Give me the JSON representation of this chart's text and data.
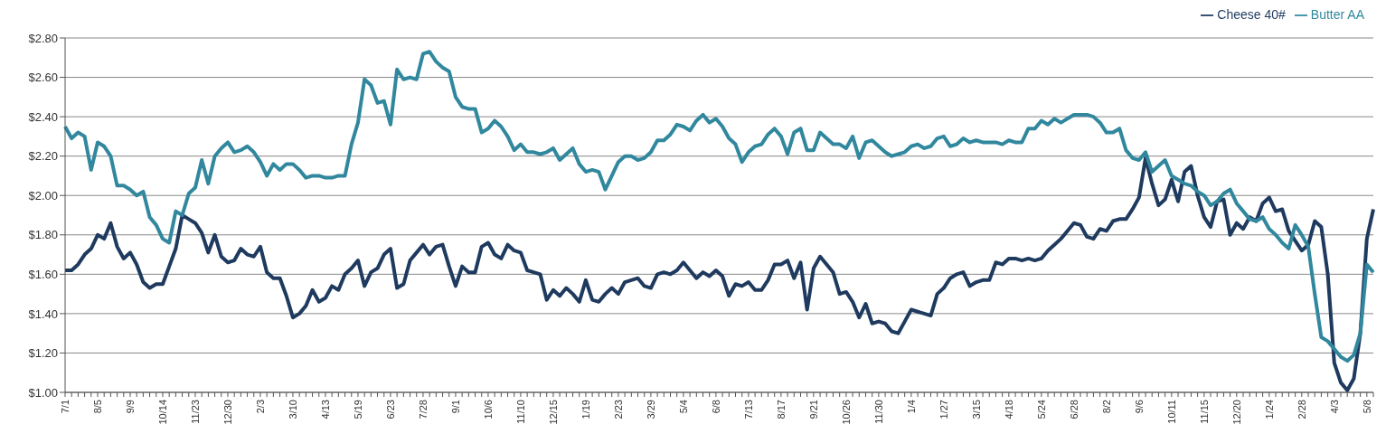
{
  "chart_data": {
    "type": "line",
    "categories": [
      "7/1",
      null,
      null,
      null,
      null,
      "8/5",
      null,
      null,
      null,
      null,
      "9/9",
      null,
      null,
      null,
      null,
      "10/14",
      null,
      null,
      null,
      null,
      "11/23",
      null,
      null,
      null,
      null,
      "12/30",
      null,
      null,
      null,
      null,
      "2/3",
      null,
      null,
      null,
      null,
      "3/10",
      null,
      null,
      null,
      null,
      "4/13",
      null,
      null,
      null,
      null,
      "5/19",
      null,
      null,
      null,
      null,
      "6/23",
      null,
      null,
      null,
      null,
      "7/28",
      null,
      null,
      null,
      null,
      "9/1",
      null,
      null,
      null,
      null,
      "10/6",
      null,
      null,
      null,
      null,
      "11/10",
      null,
      null,
      null,
      null,
      "12/15",
      null,
      null,
      null,
      null,
      "1/19",
      null,
      null,
      null,
      null,
      "2/23",
      null,
      null,
      null,
      null,
      "3/29",
      null,
      null,
      null,
      null,
      "5/4",
      null,
      null,
      null,
      null,
      "6/8",
      null,
      null,
      null,
      null,
      "7/13",
      null,
      null,
      null,
      null,
      "8/17",
      null,
      null,
      null,
      null,
      "9/21",
      null,
      null,
      null,
      null,
      "10/26",
      null,
      null,
      null,
      null,
      "11/30",
      null,
      null,
      null,
      null,
      "1/4",
      null,
      null,
      null,
      null,
      "1/27",
      null,
      null,
      null,
      null,
      "3/15",
      null,
      null,
      null,
      null,
      "4/18",
      null,
      null,
      null,
      null,
      "5/24",
      null,
      null,
      null,
      null,
      "6/28",
      null,
      null,
      null,
      null,
      "8/2",
      null,
      null,
      null,
      null,
      "9/6",
      null,
      null,
      null,
      null,
      "10/11",
      null,
      null,
      null,
      null,
      "11/15",
      null,
      null,
      null,
      null,
      "12/20",
      null,
      null,
      null,
      null,
      "1/24",
      null,
      null,
      null,
      null,
      "2/28",
      null,
      null,
      null,
      null,
      "4/3",
      null,
      null,
      null,
      null,
      "5/8",
      null
    ],
    "series": [
      {
        "name": "Cheese 40#",
        "color": "#1f3a5f",
        "values": [
          1.62,
          1.62,
          1.65,
          1.7,
          1.73,
          1.8,
          1.78,
          1.86,
          1.74,
          1.68,
          1.71,
          1.65,
          1.56,
          1.53,
          1.55,
          1.55,
          1.64,
          1.73,
          1.9,
          1.88,
          1.86,
          1.81,
          1.71,
          1.8,
          1.69,
          1.66,
          1.67,
          1.73,
          1.7,
          1.69,
          1.74,
          1.61,
          1.58,
          1.58,
          1.49,
          1.38,
          1.4,
          1.44,
          1.52,
          1.46,
          1.48,
          1.54,
          1.52,
          1.6,
          1.63,
          1.67,
          1.54,
          1.61,
          1.63,
          1.7,
          1.73,
          1.53,
          1.55,
          1.67,
          1.71,
          1.75,
          1.7,
          1.74,
          1.75,
          1.64,
          1.54,
          1.64,
          1.61,
          1.61,
          1.74,
          1.76,
          1.7,
          1.68,
          1.75,
          1.72,
          1.71,
          1.62,
          1.61,
          1.6,
          1.47,
          1.52,
          1.49,
          1.53,
          1.5,
          1.46,
          1.57,
          1.47,
          1.46,
          1.5,
          1.53,
          1.5,
          1.56,
          1.57,
          1.58,
          1.54,
          1.53,
          1.6,
          1.61,
          1.6,
          1.62,
          1.66,
          1.62,
          1.58,
          1.61,
          1.59,
          1.62,
          1.59,
          1.49,
          1.55,
          1.54,
          1.56,
          1.52,
          1.52,
          1.57,
          1.65,
          1.65,
          1.67,
          1.58,
          1.66,
          1.42,
          1.63,
          1.69,
          1.65,
          1.61,
          1.5,
          1.51,
          1.46,
          1.38,
          1.45,
          1.35,
          1.36,
          1.35,
          1.31,
          1.3,
          1.36,
          1.42,
          1.41,
          1.4,
          1.39,
          1.5,
          1.53,
          1.58,
          1.6,
          1.61,
          1.54,
          1.56,
          1.57,
          1.57,
          1.66,
          1.65,
          1.68,
          1.68,
          1.67,
          1.68,
          1.67,
          1.68,
          1.72,
          1.75,
          1.78,
          1.82,
          1.86,
          1.85,
          1.79,
          1.78,
          1.83,
          1.82,
          1.87,
          1.88,
          1.88,
          1.93,
          1.99,
          2.19,
          2.06,
          1.95,
          1.98,
          2.08,
          1.97,
          2.12,
          2.15,
          2.0,
          1.89,
          1.84,
          1.97,
          1.98,
          1.8,
          1.86,
          1.83,
          1.89,
          1.87,
          1.96,
          1.99,
          1.92,
          1.93,
          1.82,
          1.77,
          1.72,
          1.75,
          1.87,
          1.84,
          1.6,
          1.15,
          1.05,
          1.01,
          1.07,
          1.3,
          1.78,
          1.93
        ]
      },
      {
        "name": "Butter AA",
        "color": "#31889e",
        "values": [
          2.35,
          2.29,
          2.32,
          2.3,
          2.13,
          2.27,
          2.25,
          2.2,
          2.05,
          2.05,
          2.03,
          2.0,
          2.02,
          1.89,
          1.85,
          1.78,
          1.76,
          1.92,
          1.9,
          2.01,
          2.04,
          2.18,
          2.06,
          2.2,
          2.24,
          2.27,
          2.22,
          2.23,
          2.25,
          2.22,
          2.17,
          2.1,
          2.16,
          2.13,
          2.16,
          2.16,
          2.13,
          2.09,
          2.1,
          2.1,
          2.09,
          2.09,
          2.1,
          2.1,
          2.26,
          2.37,
          2.59,
          2.56,
          2.47,
          2.48,
          2.36,
          2.64,
          2.59,
          2.6,
          2.59,
          2.72,
          2.73,
          2.68,
          2.65,
          2.63,
          2.5,
          2.45,
          2.44,
          2.44,
          2.32,
          2.34,
          2.38,
          2.35,
          2.3,
          2.23,
          2.26,
          2.22,
          2.22,
          2.21,
          2.22,
          2.24,
          2.18,
          2.21,
          2.24,
          2.16,
          2.12,
          2.13,
          2.12,
          2.03,
          2.1,
          2.17,
          2.2,
          2.2,
          2.18,
          2.19,
          2.22,
          2.28,
          2.28,
          2.31,
          2.36,
          2.35,
          2.33,
          2.38,
          2.41,
          2.37,
          2.39,
          2.35,
          2.29,
          2.26,
          2.17,
          2.22,
          2.25,
          2.26,
          2.31,
          2.34,
          2.3,
          2.21,
          2.32,
          2.34,
          2.23,
          2.23,
          2.32,
          2.29,
          2.26,
          2.26,
          2.24,
          2.3,
          2.19,
          2.27,
          2.28,
          2.25,
          2.22,
          2.2,
          2.21,
          2.22,
          2.25,
          2.26,
          2.24,
          2.25,
          2.29,
          2.3,
          2.25,
          2.26,
          2.29,
          2.27,
          2.28,
          2.27,
          2.27,
          2.27,
          2.26,
          2.28,
          2.27,
          2.27,
          2.34,
          2.34,
          2.38,
          2.36,
          2.39,
          2.37,
          2.39,
          2.41,
          2.41,
          2.41,
          2.4,
          2.37,
          2.32,
          2.32,
          2.34,
          2.23,
          2.19,
          2.18,
          2.22,
          2.12,
          2.15,
          2.18,
          2.1,
          2.08,
          2.06,
          2.05,
          2.02,
          2.0,
          1.95,
          1.97,
          2.01,
          2.03,
          1.96,
          1.92,
          1.88,
          1.87,
          1.89,
          1.83,
          1.8,
          1.76,
          1.73,
          1.85,
          1.8,
          1.74,
          1.5,
          1.28,
          1.26,
          1.22,
          1.18,
          1.16,
          1.19,
          1.3,
          1.65,
          1.61
        ]
      }
    ],
    "ylim": [
      1.0,
      2.8
    ],
    "yticks": [
      {
        "value": 1.0,
        "label": "$1.00"
      },
      {
        "value": 1.2,
        "label": "$1.20"
      },
      {
        "value": 1.4,
        "label": "$1.40"
      },
      {
        "value": 1.6,
        "label": "$1.60"
      },
      {
        "value": 1.8,
        "label": "$1.80"
      },
      {
        "value": 2.0,
        "label": "$2.00"
      },
      {
        "value": 2.2,
        "label": "$2.20"
      },
      {
        "value": 2.4,
        "label": "$2.40"
      },
      {
        "value": 2.6,
        "label": "$2.60"
      },
      {
        "value": 2.8,
        "label": "$2.80"
      }
    ],
    "grid": "y",
    "legend": "top right",
    "marker": "none",
    "line_style": "solid"
  }
}
